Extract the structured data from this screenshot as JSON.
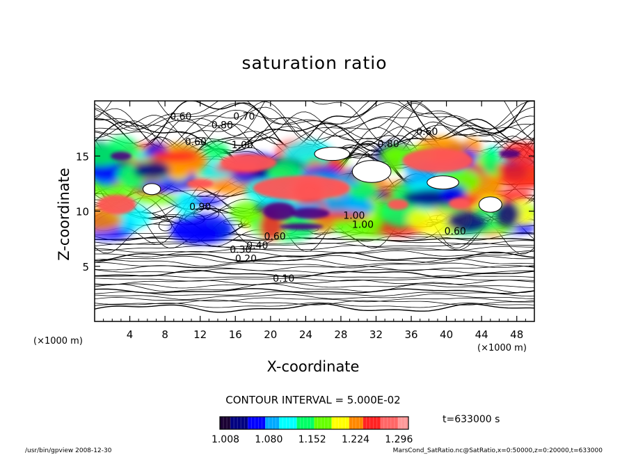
{
  "chart_data": {
    "type": "heatmap",
    "title": "saturation ratio",
    "xlabel": "X-coordinate",
    "ylabel": "Z-coordinate",
    "x_unit": "(×1000 m)",
    "y_unit": "(×1000 m)",
    "xlim": [
      0,
      50
    ],
    "ylim": [
      0,
      20
    ],
    "x_ticks": [
      "4",
      "8",
      "12",
      "16",
      "20",
      "24",
      "28",
      "32",
      "36",
      "40",
      "44",
      "48"
    ],
    "y_ticks": [
      "5",
      "10",
      "15"
    ],
    "contour_labels": [
      "0.10",
      "0.20",
      "0.30",
      "0.40",
      "0.60",
      "0.70",
      "0.80",
      "0.90",
      "1.00"
    ],
    "contour_interval": "CONTOUR INTERVAL = 5.000E-02",
    "colorbar": {
      "ticks": [
        "1.008",
        "1.080",
        "1.152",
        "1.224",
        "1.296"
      ],
      "colors": [
        "#1a0033",
        "#000080",
        "#0000ff",
        "#00aaff",
        "#00ffff",
        "#00ff66",
        "#66ff00",
        "#ffff00",
        "#ff8800",
        "#ff2222",
        "#ff6666",
        "#ff9999"
      ]
    },
    "supersaturated_cells": [
      {
        "x": [
          0,
          50
        ],
        "z": [
          8,
          15.5
        ]
      },
      {
        "x": [
          0,
          10
        ],
        "z": [
          13,
          15.5
        ]
      },
      {
        "x": [
          20,
          31
        ],
        "z": [
          8.5,
          14
        ]
      },
      {
        "x": [
          34,
          49
        ],
        "z": [
          9,
          16
        ]
      }
    ]
  },
  "time_label": "t=633000 s",
  "footer": {
    "left": "/usr/bin/gpview   2008-12-30",
    "right": "MarsCond_SatRatio.nc@SatRatio,x=0:50000,z=0:20000,t=633000"
  }
}
